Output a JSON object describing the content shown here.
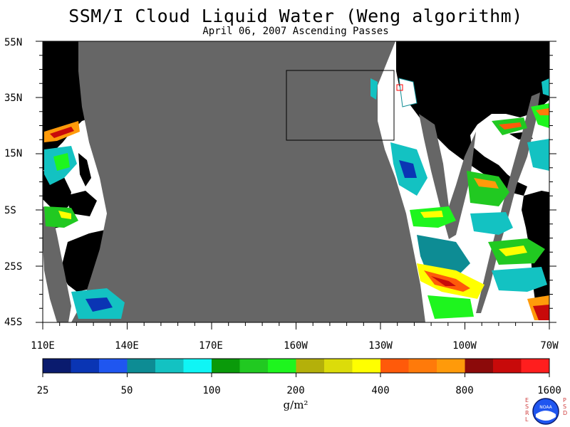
{
  "title": "SSM/I Cloud Liquid Water (Weng algorithm)",
  "subtitle": "April 06, 2007  Ascending Passes",
  "lat_labels": [
    "55N",
    "35N",
    "15N",
    "5S",
    "25S",
    "45S"
  ],
  "lon_labels": [
    "110E",
    "140E",
    "170E",
    "160W",
    "130W",
    "100W",
    "70W"
  ],
  "colorbar": {
    "colors": [
      "#0a1b6e",
      "#0a35b4",
      "#1f56f0",
      "#0d8c94",
      "#13c2c2",
      "#0ff5f5",
      "#0a9a0a",
      "#21c921",
      "#1ef51e",
      "#b4b00a",
      "#dcdc0a",
      "#ffff00",
      "#ff5a0a",
      "#ff7a0a",
      "#ff9a0a",
      "#8c0a0a",
      "#c80a0a",
      "#ff1e1e"
    ],
    "labels": [
      "25",
      "50",
      "100",
      "200",
      "400",
      "800",
      "1600"
    ],
    "units": "g/m²"
  },
  "logo": {
    "left_letters": "ESRL",
    "right_letters": "PSD",
    "badge": "NOAA"
  }
}
